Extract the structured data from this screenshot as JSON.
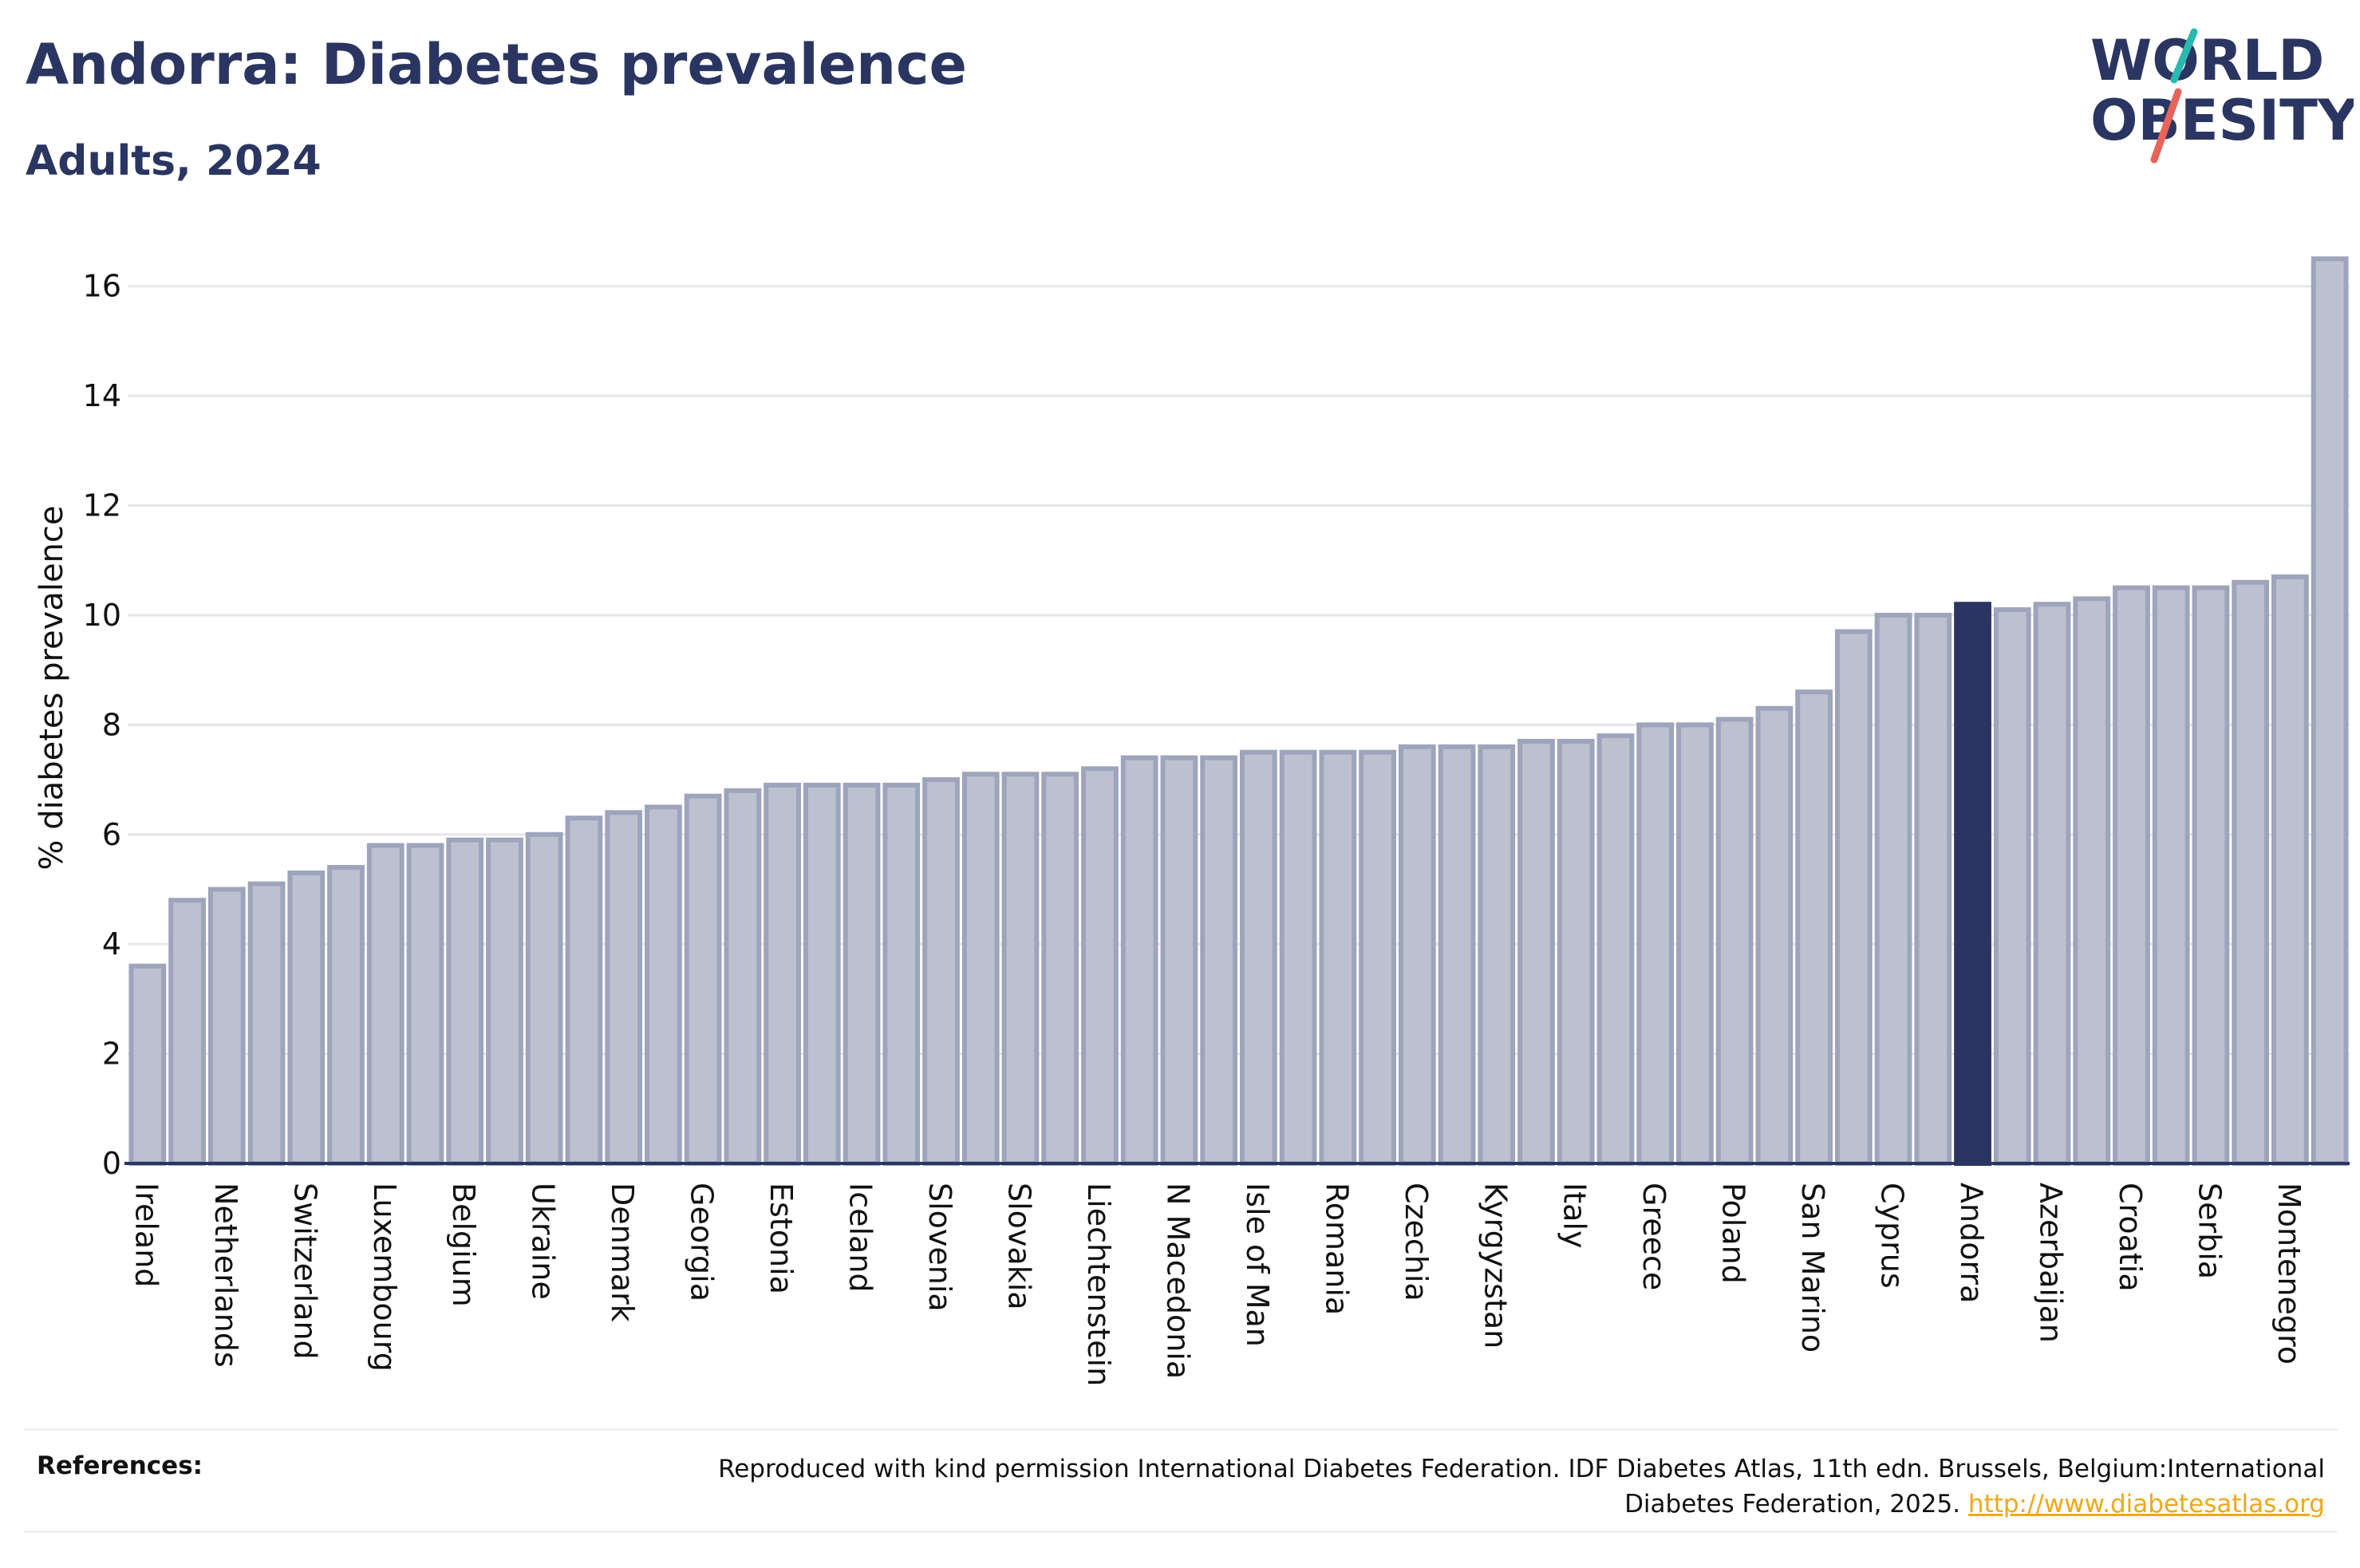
{
  "header": {
    "title": "Andorra: Diabetes prevalence",
    "subtitle": "Adults, 2024"
  },
  "logo": {
    "line1": "WORLD",
    "line2": "OBESITY",
    "accent_teal": "#2ab8b0",
    "accent_red": "#e8645a"
  },
  "colors": {
    "bar": "#bcc1cf",
    "bar_border": "#9ea4bc",
    "highlight": "#2a3561",
    "grid": "#e4e6ea",
    "text": "#111111"
  },
  "chart_data": {
    "type": "bar",
    "ylabel": "% diabetes prevalence",
    "ylim": [
      0,
      17
    ],
    "yticks": [
      0,
      2,
      4,
      6,
      8,
      10,
      12,
      14,
      16
    ],
    "grid": true,
    "highlight": "Andorra",
    "categories": [
      "Ireland",
      "",
      "Netherlands",
      "",
      "Switzerland",
      "",
      "Luxembourg",
      "",
      "Belgium",
      "",
      "Ukraine",
      "",
      "Denmark",
      "",
      "Georgia",
      "",
      "Estonia",
      "",
      "Iceland",
      "",
      "Slovenia",
      "",
      "Slovakia",
      "",
      "Liechtenstein",
      "",
      "N Macedonia",
      "",
      "Isle of Man",
      "",
      "Romania",
      "",
      "Czechia",
      "",
      "Kyrgyzstan",
      "",
      "Italy",
      "",
      "Greece",
      "",
      "Poland",
      "",
      "San Marino",
      "",
      "Cyprus",
      "",
      "Andorra",
      "",
      "Azerbaijan",
      "",
      "Croatia",
      "",
      "Serbia",
      "",
      "Montenegro",
      ""
    ],
    "values": [
      3.6,
      4.8,
      5.0,
      5.1,
      5.3,
      5.4,
      5.8,
      5.8,
      5.9,
      5.9,
      6.0,
      6.3,
      6.4,
      6.5,
      6.7,
      6.8,
      6.9,
      6.9,
      6.9,
      6.9,
      7.0,
      7.1,
      7.1,
      7.1,
      7.2,
      7.4,
      7.4,
      7.4,
      7.5,
      7.5,
      7.5,
      7.5,
      7.6,
      7.6,
      7.6,
      7.7,
      7.7,
      7.8,
      8.0,
      8.0,
      8.1,
      8.3,
      8.6,
      9.7,
      10.0,
      10.0,
      10.2,
      10.1,
      10.2,
      10.3,
      10.5,
      10.5,
      10.5,
      10.6,
      10.7,
      16.5
    ]
  },
  "references": {
    "label": "References:",
    "text": "Reproduced with kind permission International Diabetes Federation. IDF Diabetes Atlas, 11th edn. Brussels, Belgium:International Diabetes Federation, 2025.",
    "link": "http://www.diabetesatlas.org"
  }
}
